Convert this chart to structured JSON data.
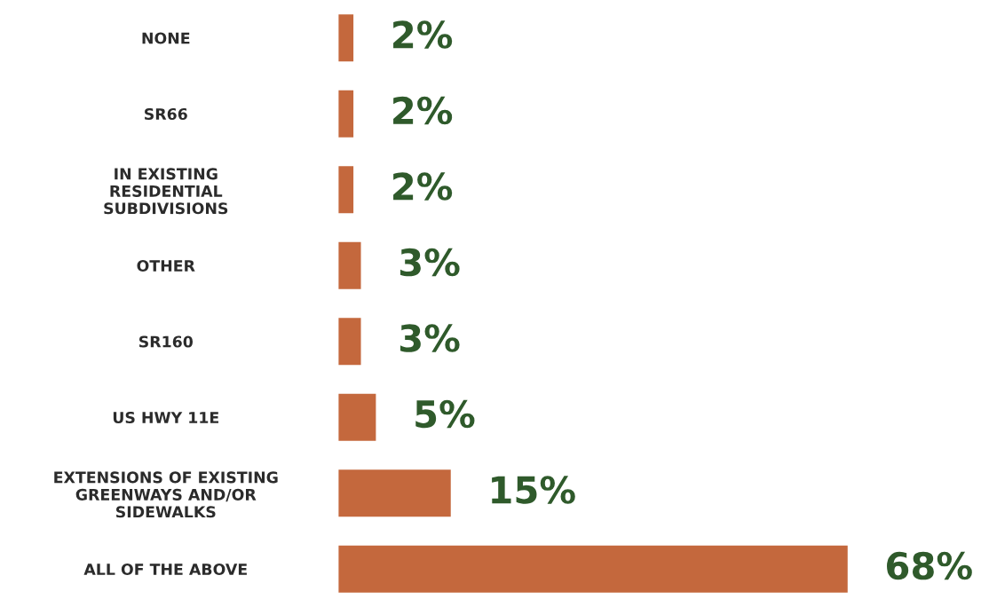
{
  "chart_data": {
    "type": "bar",
    "orientation": "horizontal",
    "categories": [
      "NONE",
      "SR66",
      "IN EXISTING\nRESIDENTIAL\nSUBDIVISIONS",
      "OTHER",
      "SR160",
      "US HWY 11E",
      "EXTENSIONS OF EXISTING\nGREENWAYS AND/OR\nSIDEWALKS",
      "ALL OF THE ABOVE"
    ],
    "values": [
      2,
      2,
      2,
      3,
      3,
      5,
      15,
      68
    ],
    "value_labels": [
      "2%",
      "2%",
      "2%",
      "3%",
      "3%",
      "5%",
      "15%",
      "68%"
    ],
    "color": "#c4683d",
    "grid": false,
    "legend": false,
    "tick_labels": "y"
  }
}
